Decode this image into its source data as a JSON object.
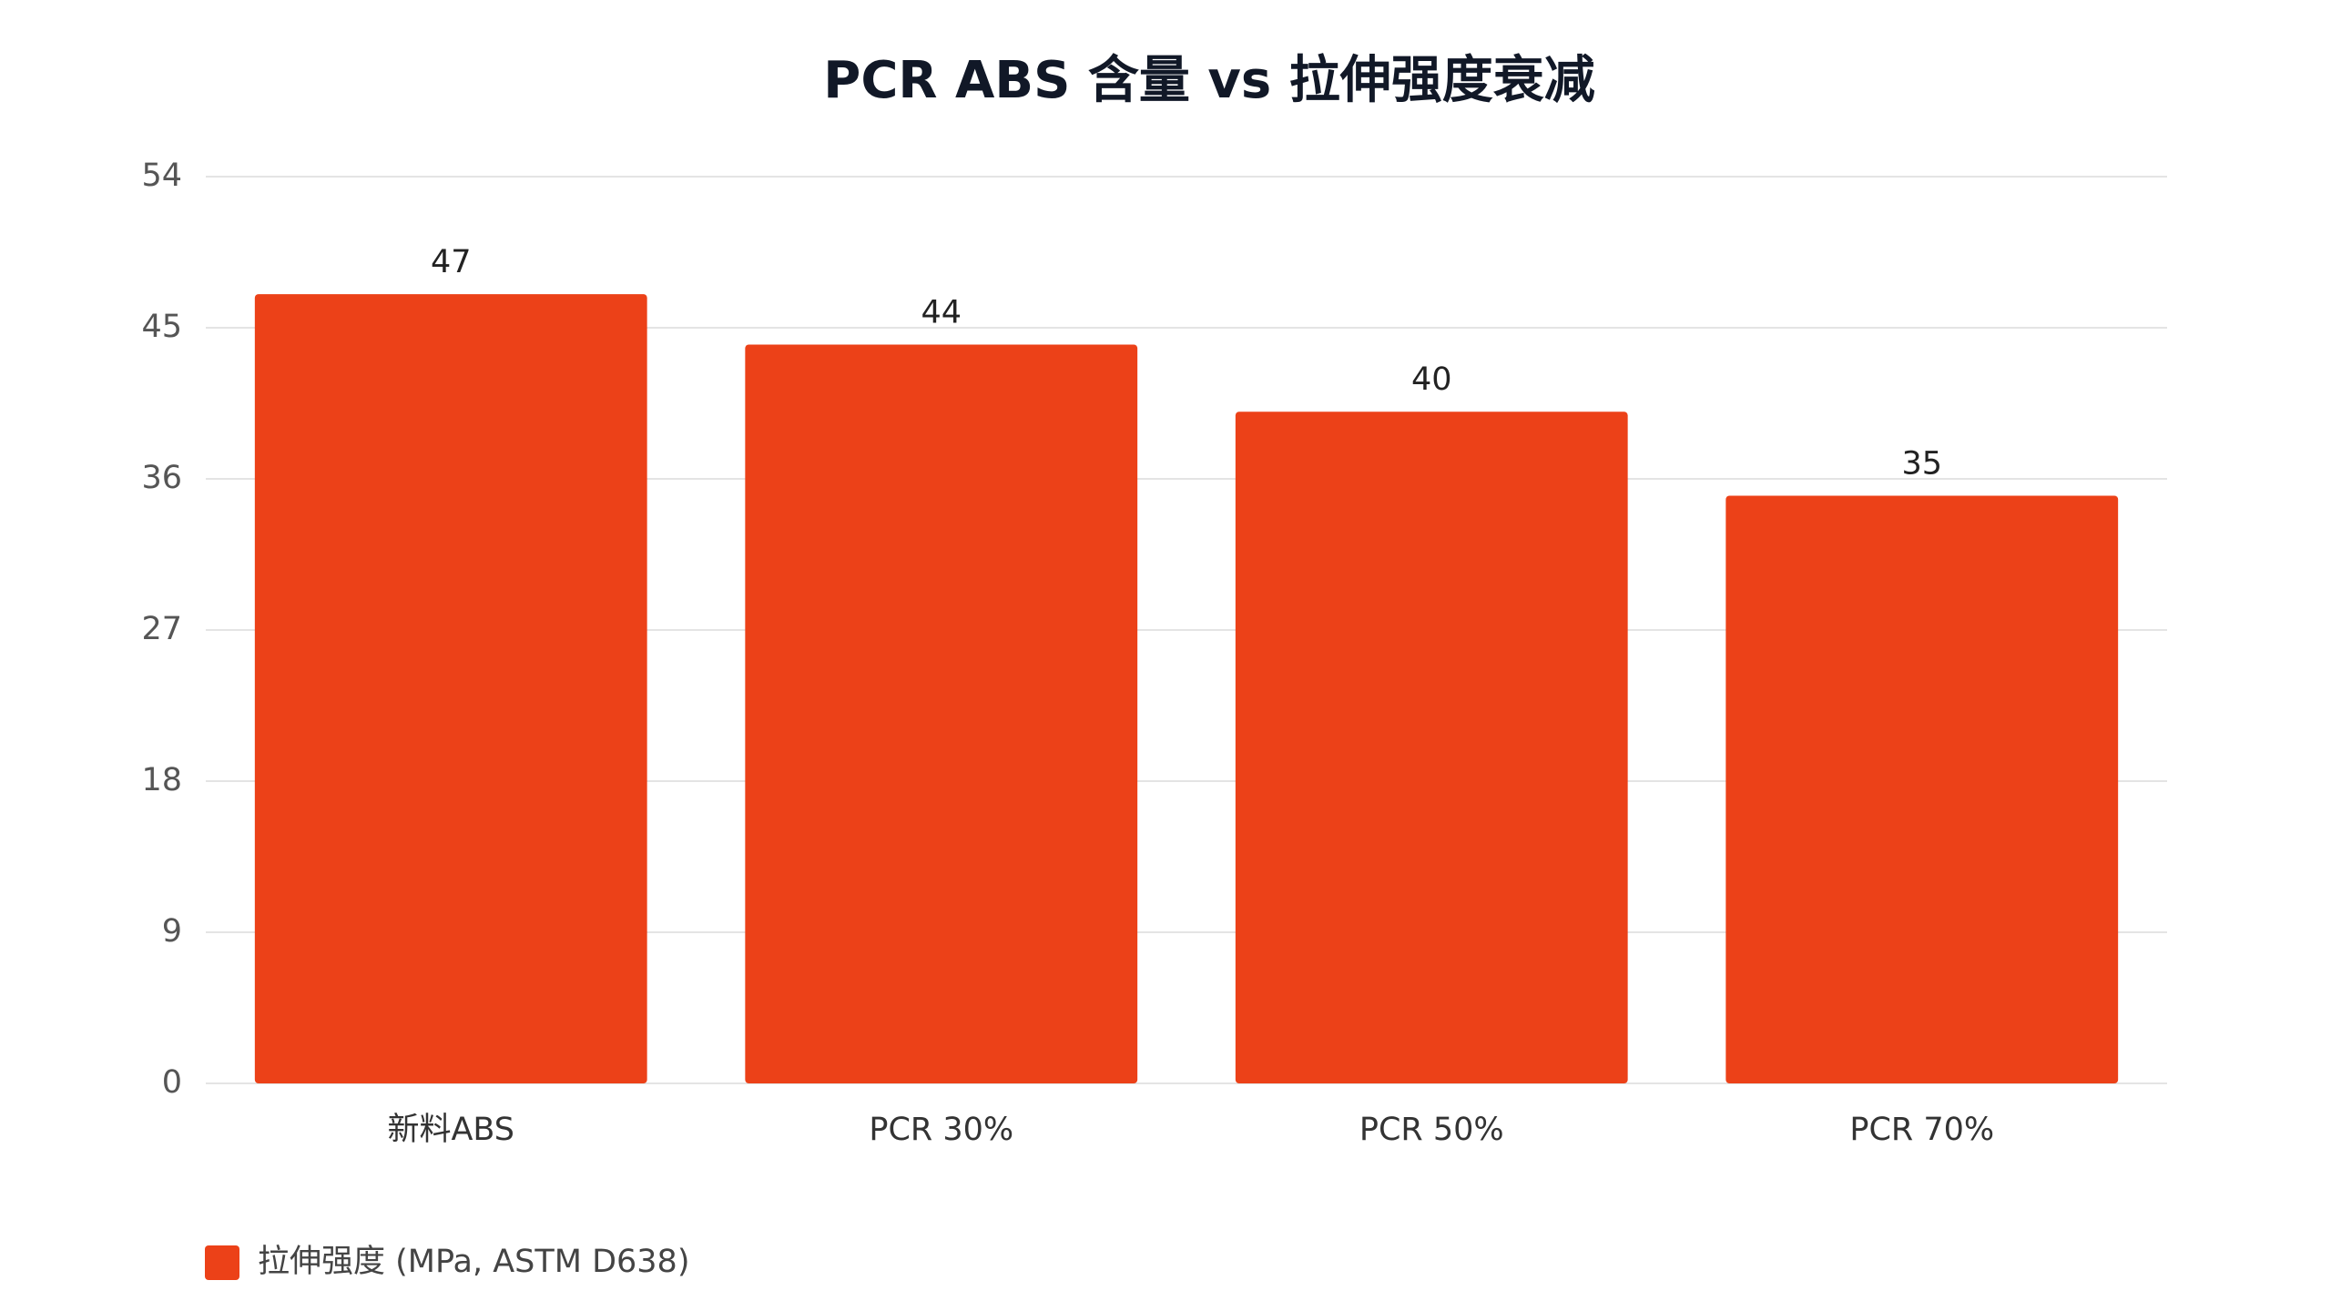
{
  "chart_data": {
    "type": "bar",
    "title": "PCR ABS 含量 vs 拉伸强度衰减",
    "categories": [
      "新料ABS",
      "PCR 30%",
      "PCR 50%",
      "PCR 70%"
    ],
    "series": [
      {
        "name": "拉伸强度 (MPa, ASTM D638)",
        "color": "#ec4118",
        "values": [
          47,
          44,
          40,
          35
        ]
      }
    ],
    "ylim": [
      0,
      54
    ],
    "yticks": [
      0,
      9,
      18,
      27,
      36,
      45,
      54
    ],
    "grid": true
  }
}
